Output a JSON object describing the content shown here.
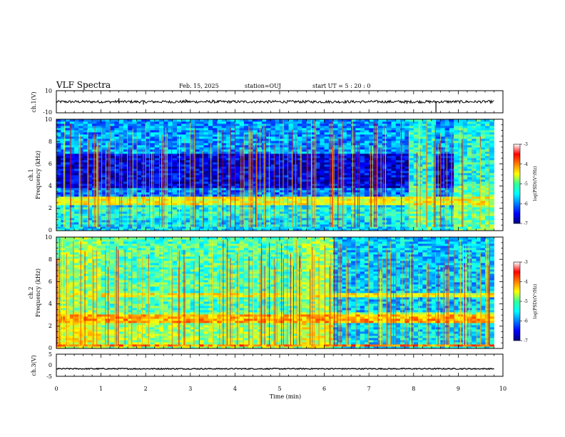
{
  "header": {
    "title": "VLF Spectra",
    "date": "Feb. 15, 2025",
    "station": "station=OUJ",
    "start_ut": "start  UT =  5 : 20 : 0"
  },
  "chart_data": {
    "type": "heatmap",
    "x_axis": {
      "label": "Time (min)",
      "range": [
        0,
        10
      ],
      "ticks": [
        "0",
        "1",
        "2",
        "3",
        "4",
        "5",
        "6",
        "7",
        "8",
        "9",
        "10"
      ]
    },
    "panels": [
      {
        "id": "ch1-waveform",
        "type": "line",
        "ylabel": "ch.1(V)",
        "ylim": [
          -10,
          10
        ],
        "yticks": [
          "10",
          "-10"
        ],
        "signal_level": 0,
        "noise_amplitude": 1.2,
        "spikes": [
          {
            "t": 1.4,
            "value": 3.2
          },
          {
            "t": 1.95,
            "value": -2.6
          },
          {
            "t": 2.9,
            "value": 2.1
          },
          {
            "t": 3.5,
            "value": 1.8
          },
          {
            "t": 7.85,
            "value": -1.9
          },
          {
            "t": 8.5,
            "value": -9.5
          }
        ]
      },
      {
        "id": "ch1-spectrogram",
        "type": "heatmap",
        "ylabel": "ch.1",
        "ylabel2": "Frequency (kHz)",
        "ylim": [
          0,
          10
        ],
        "yticks": [
          "0",
          "2",
          "4",
          "6",
          "8",
          "10"
        ],
        "regimes": [
          {
            "t0": 0,
            "t1": 7.95,
            "profile": "quiet"
          },
          {
            "t0": 7.95,
            "t1": 8.55,
            "profile": "noisy"
          },
          {
            "t0": 8.55,
            "t1": 8.9,
            "profile": "quiet"
          },
          {
            "t0": 8.9,
            "t1": 9.8,
            "profile": "noisy"
          }
        ],
        "bands": [
          {
            "f0": 0.5,
            "f1": 0.65,
            "value": -4.8
          },
          {
            "f0": 2.3,
            "f1": 3.1,
            "value": -4.6
          },
          {
            "f0": 1.1,
            "f1": 2.2,
            "value": -5.4
          }
        ],
        "sferics_per_min": 14
      },
      {
        "id": "ch2-spectrogram",
        "type": "heatmap",
        "ylabel": "ch.2",
        "ylabel2": "Frequency (kHz)",
        "ylim": [
          0,
          10
        ],
        "yticks": [
          "0",
          "2",
          "4",
          "6",
          "8",
          "10"
        ],
        "regimes": [
          {
            "t0": 0,
            "t1": 1.0,
            "profile": "active"
          },
          {
            "t0": 1.0,
            "t1": 5.5,
            "profile": "moderate"
          },
          {
            "t0": 5.5,
            "t1": 6.2,
            "profile": "active"
          },
          {
            "t0": 6.2,
            "t1": 9.8,
            "profile": "calm"
          }
        ],
        "bands": [
          {
            "f0": 2.4,
            "f1": 3.0,
            "value": -4.2
          },
          {
            "f0": 0.2,
            "f1": 0.4,
            "value": -4.0
          },
          {
            "f0": 4.6,
            "f1": 5.0,
            "value": -4.6
          }
        ],
        "sferics_per_min": 16
      },
      {
        "id": "ch3-waveform",
        "type": "line",
        "ylabel": "ch.3(V)",
        "ylim": [
          -5,
          5
        ],
        "yticks": [
          "5",
          "0",
          "-5"
        ],
        "signal_level": -1.6,
        "noise_amplitude": 0.25,
        "spikes": []
      }
    ],
    "data_extent_min": 9.8,
    "colorbar": {
      "label": "log(PSD)(V²/Hz)",
      "range": [
        -7,
        -3
      ],
      "ticks": [
        "-3",
        "-4",
        "-5",
        "-6",
        "-7"
      ],
      "colormap": "jet"
    }
  }
}
